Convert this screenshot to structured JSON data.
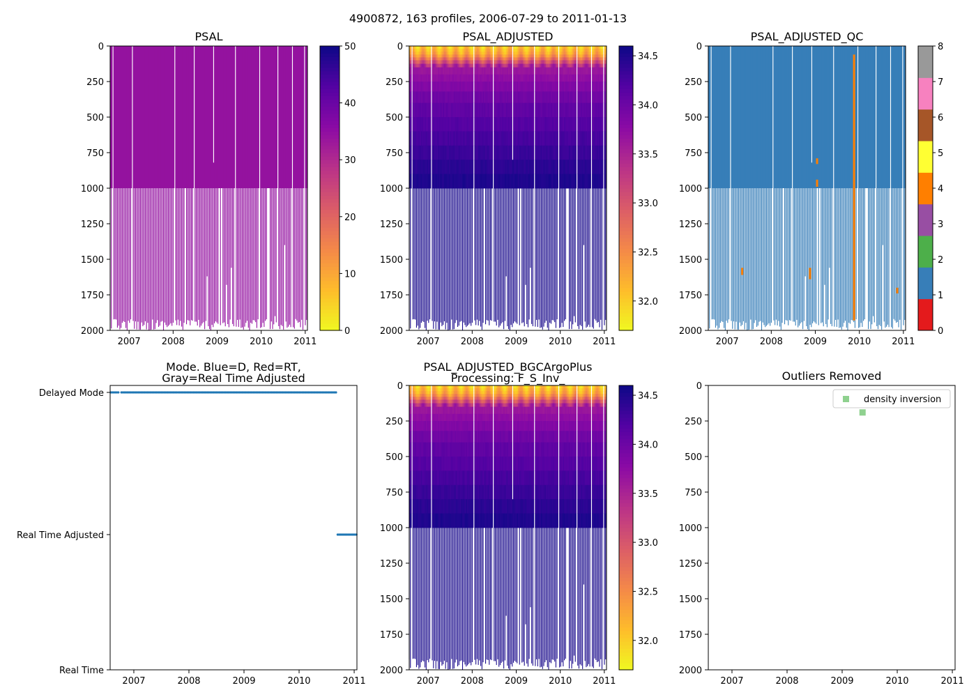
{
  "figure": {
    "suptitle": "4900872, 163 profiles, 2006-07-29 to 2011-01-13"
  },
  "colors": {
    "qc_palette": [
      "#e41a1c",
      "#377eb8",
      "#4daf4a",
      "#984ea3",
      "#ff7f00",
      "#ffff33",
      "#a65628",
      "#f781bf",
      "#999999"
    ],
    "mode_points": "#1f77b4",
    "outlier_marker": "#8fd18f"
  },
  "chart_data": [
    {
      "id": "psal",
      "type": "heatmap",
      "title": "PSAL",
      "x_range": [
        2006.57,
        2011.05
      ],
      "y_range": [
        2000,
        0
      ],
      "xticks": [
        "2007",
        "2008",
        "2009",
        "2010",
        "2011"
      ],
      "xtick_values": [
        2007,
        2008,
        2009,
        2010,
        2011
      ],
      "yticks": [
        "0",
        "250",
        "500",
        "750",
        "1000",
        "1250",
        "1500",
        "1750",
        "2000"
      ],
      "ytick_values": [
        0,
        250,
        500,
        750,
        1000,
        1250,
        1500,
        1750,
        2000
      ],
      "colormap": "plasma_r",
      "colorbar": {
        "range": [
          0,
          50
        ],
        "ticks": [
          "0",
          "10",
          "20",
          "30",
          "40",
          "50"
        ],
        "tick_values": [
          0,
          10,
          20,
          30,
          40,
          50
        ]
      },
      "upper_value": 34.3,
      "profiles": 163,
      "deep_depth_range": [
        1000,
        2000
      ]
    },
    {
      "id": "psal_adj",
      "type": "heatmap",
      "title": "PSAL_ADJUSTED",
      "x_range": [
        2006.57,
        2011.05
      ],
      "y_range": [
        2000,
        0
      ],
      "xticks": [
        "2007",
        "2008",
        "2009",
        "2010",
        "2011"
      ],
      "xtick_values": [
        2007,
        2008,
        2009,
        2010,
        2011
      ],
      "yticks": [
        "0",
        "250",
        "500",
        "750",
        "1000",
        "1250",
        "1500",
        "1750",
        "2000"
      ],
      "ytick_values": [
        0,
        250,
        500,
        750,
        1000,
        1250,
        1500,
        1750,
        2000
      ],
      "colormap": "plasma_r",
      "colorbar": {
        "range": [
          31.7,
          34.6
        ],
        "ticks": [
          "32.0",
          "32.5",
          "33.0",
          "33.5",
          "34.0",
          "34.5"
        ],
        "tick_values": [
          32.0,
          32.5,
          33.0,
          33.5,
          34.0,
          34.5
        ]
      },
      "surface_value": 32.0,
      "deep_value": 34.55
    },
    {
      "id": "psal_qc",
      "type": "heatmap",
      "title": "PSAL_ADJUSTED_QC",
      "x_range": [
        2006.57,
        2011.05
      ],
      "y_range": [
        2000,
        0
      ],
      "xticks": [
        "2007",
        "2008",
        "2009",
        "2010",
        "2011"
      ],
      "xtick_values": [
        2007,
        2008,
        2009,
        2010,
        2011
      ],
      "yticks": [
        "0",
        "250",
        "500",
        "750",
        "1000",
        "1250",
        "1500",
        "1750",
        "2000"
      ],
      "ytick_values": [
        0,
        250,
        500,
        750,
        1000,
        1250,
        1500,
        1750,
        2000
      ],
      "colormap": "Set1 (discrete 0-8)",
      "colorbar": {
        "range": [
          0,
          8
        ],
        "ticks": [
          "0",
          "1",
          "2",
          "3",
          "4",
          "5",
          "6",
          "7",
          "8"
        ],
        "tick_values": [
          0,
          1,
          2,
          3,
          4,
          5,
          6,
          7,
          8
        ]
      },
      "dominant_flag": 1,
      "flag4_spots": [
        {
          "t": 2007.34,
          "depth": [
            1560,
            1610
          ]
        },
        {
          "t": 2008.88,
          "depth": [
            1560,
            1640
          ]
        },
        {
          "t": 2009.04,
          "depth": [
            940,
            990
          ]
        },
        {
          "t": 2009.04,
          "depth": [
            790,
            830
          ]
        },
        {
          "t": 2009.88,
          "depth": [
            60,
            1930
          ]
        },
        {
          "t": 2010.86,
          "depth": [
            1700,
            1740
          ]
        }
      ]
    },
    {
      "id": "mode",
      "type": "scatter",
      "title": "Mode. Blue=D, Red=RT,",
      "title_line2": "Gray=Real Time Adjusted",
      "x_range": [
        2006.57,
        2011.05
      ],
      "xticks": [
        "2007",
        "2008",
        "2009",
        "2010",
        "2011"
      ],
      "xtick_values": [
        2007,
        2008,
        2009,
        2010,
        2011
      ],
      "yticks": [
        "Delayed Mode",
        "Real Time Adjusted",
        "Real Time"
      ],
      "ytick_values": [
        2,
        1,
        0
      ],
      "y_range": [
        0,
        2
      ],
      "series": [
        {
          "name": "Delayed Mode",
          "y": 2,
          "x_start": 2006.58,
          "x_end": 2010.67,
          "n": 148
        },
        {
          "name": "Real Time Adjusted",
          "y": 1,
          "x_start": 2010.7,
          "x_end": 2011.04,
          "n": 15
        }
      ]
    },
    {
      "id": "psal_bgc",
      "type": "heatmap",
      "title": "PSAL_ADJUSTED_BGCArgoPlus",
      "title_line2": "Processing: F_S_Inv_",
      "x_range": [
        2006.57,
        2011.05
      ],
      "y_range": [
        2000,
        0
      ],
      "xticks": [
        "2007",
        "2008",
        "2009",
        "2010",
        "2011"
      ],
      "xtick_values": [
        2007,
        2008,
        2009,
        2010,
        2011
      ],
      "yticks": [
        "0",
        "250",
        "500",
        "750",
        "1000",
        "1250",
        "1500",
        "1750",
        "2000"
      ],
      "ytick_values": [
        0,
        250,
        500,
        750,
        1000,
        1250,
        1500,
        1750,
        2000
      ],
      "colormap": "plasma_r",
      "colorbar": {
        "range": [
          31.7,
          34.6
        ],
        "ticks": [
          "32.0",
          "32.5",
          "33.0",
          "33.5",
          "34.0",
          "34.5"
        ],
        "tick_values": [
          32.0,
          32.5,
          33.0,
          33.5,
          34.0,
          34.5
        ]
      },
      "surface_value": 32.0,
      "deep_value": 34.55
    },
    {
      "id": "outliers",
      "type": "scatter",
      "title": "Outliers Removed",
      "x_range": [
        2006.57,
        2011.05
      ],
      "y_range": [
        2000,
        0
      ],
      "xticks": [
        "2007",
        "2008",
        "2009",
        "2010",
        "2011"
      ],
      "xtick_values": [
        2007,
        2008,
        2009,
        2010,
        2011
      ],
      "yticks": [
        "0",
        "250",
        "500",
        "750",
        "1000",
        "1250",
        "1500",
        "1750",
        "2000"
      ],
      "ytick_values": [
        0,
        250,
        500,
        750,
        1000,
        1250,
        1500,
        1750,
        2000
      ],
      "legend": {
        "label": "density inversion",
        "placement": "top-right"
      },
      "series": [
        {
          "name": "density inversion",
          "points": [
            {
              "x": 2009.37,
              "y": 190
            }
          ]
        }
      ]
    }
  ]
}
